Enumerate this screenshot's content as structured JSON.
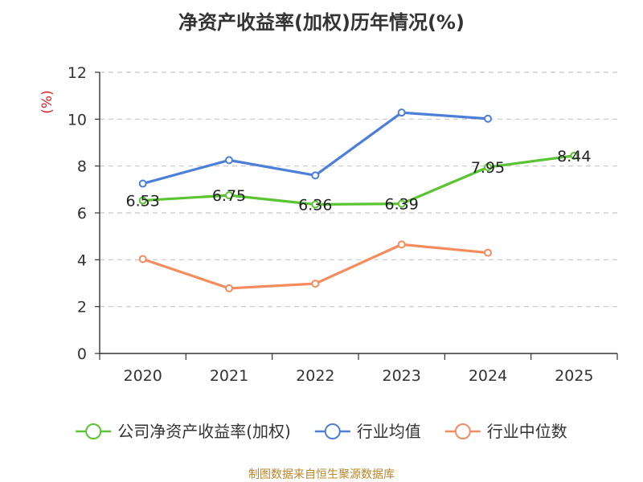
{
  "chart_data": {
    "type": "line",
    "title": "净资产收益率(加权)历年情况(%)",
    "ylabel": "(%)",
    "xlabel": "",
    "categories": [
      "2020",
      "2021",
      "2022",
      "2023",
      "2024",
      "2025"
    ],
    "ylim": [
      0,
      12
    ],
    "yticks": [
      0,
      2,
      4,
      6,
      8,
      10,
      12
    ],
    "grid": true,
    "legend_position": "bottom",
    "series": [
      {
        "name": "公司净资产收益率(加权)",
        "color": "#5bc433",
        "values": [
          6.53,
          6.75,
          6.36,
          6.39,
          7.95,
          8.44
        ],
        "labels": [
          "6.53",
          "6.75",
          "6.36",
          "6.39",
          "7.95",
          "8.44"
        ]
      },
      {
        "name": "行业均值",
        "color": "#4e7fd8",
        "values": [
          7.25,
          8.25,
          7.6,
          10.28,
          10.02,
          null
        ]
      },
      {
        "name": "行业中位数",
        "color": "#f58c5d",
        "values": [
          4.03,
          2.78,
          2.98,
          4.65,
          4.3,
          null
        ]
      }
    ]
  },
  "source": "制图数据来自恒生聚源数据库"
}
